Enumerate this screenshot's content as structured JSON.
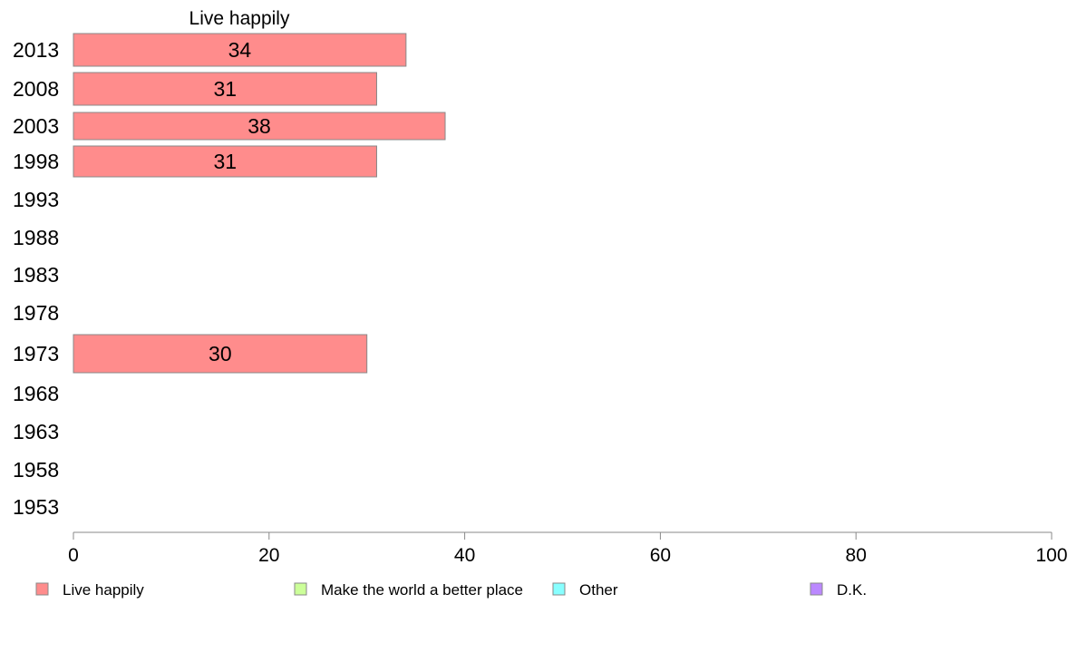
{
  "chart_data": {
    "type": "bar",
    "orientation": "horizontal",
    "title": "Live happily",
    "categories": [
      "2013",
      "2008",
      "2003",
      "1998",
      "1993",
      "1988",
      "1983",
      "1978",
      "1973",
      "1968",
      "1963",
      "1958",
      "1953"
    ],
    "series": [
      {
        "name": "Live happily",
        "color": "#ff8c8c",
        "values": [
          34,
          31,
          38,
          31,
          null,
          null,
          null,
          null,
          30,
          null,
          null,
          null,
          null
        ]
      }
    ],
    "data_labels": [
      "34",
      "31",
      "38",
      "31",
      "",
      "",
      "",
      "",
      "30",
      "",
      "",
      "",
      ""
    ],
    "xlim": [
      0,
      100
    ],
    "xticks": [
      "0",
      "20",
      "40",
      "60",
      "80",
      "100"
    ],
    "xtick_values": [
      0,
      20,
      40,
      60,
      80,
      100
    ],
    "xlabel": "",
    "ylabel": "",
    "grid": false,
    "legend_position": "bottom",
    "legend": [
      {
        "label": "Live happily",
        "color": "#ff8c8c"
      },
      {
        "label": "Make the world a better place",
        "color": "#ccff99"
      },
      {
        "label": "Other",
        "color": "#88ffff"
      },
      {
        "label": "D.K.",
        "color": "#bb88ff"
      }
    ]
  }
}
